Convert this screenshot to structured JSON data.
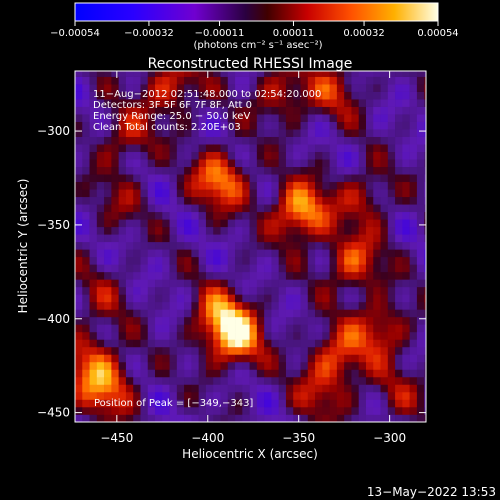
{
  "chart_data": {
    "type": "heatmap",
    "title": "Reconstructed RHESSI Image",
    "xlabel": "Heliocentric X (arcsec)",
    "ylabel": "Heliocentric Y (arcsec)",
    "xlim": [
      -473,
      -280
    ],
    "ylim": [
      -455,
      -268
    ],
    "x_ticks": [
      -450,
      -400,
      -350,
      -300
    ],
    "y_ticks": [
      -300,
      -350,
      -400,
      -450
    ],
    "x_tick_labels": [
      "−450",
      "−400",
      "−350",
      "−300"
    ],
    "y_tick_labels": [
      "−300",
      "−350",
      "−400",
      "−450"
    ],
    "colorbar": {
      "ticks": [
        -0.00054,
        -0.00032,
        -0.00011,
        0.00011,
        0.00032,
        0.00054
      ],
      "tick_labels": [
        "−0.00054",
        "−0.00032",
        "−0.00011",
        "0.00011",
        "0.00032",
        "0.00054"
      ],
      "unit_label": "(photons cm⁻² s⁻¹ asec⁻²)",
      "range": [
        -0.00054,
        0.00054
      ]
    },
    "annotations": [
      "11−Aug−2012 02:51:48.000 to 02:54:20.000",
      "Detectors: 3F 5F 6F 7F 8F, Att 0",
      "Energy Range: 25.0 − 50.0 keV",
      "Clean    Total counts: 2.20E+03"
    ],
    "peak_label": "Position of Peak = [−349,−343]",
    "peak": [
      -349,
      -343
    ],
    "hotspots": [
      {
        "x": -349,
        "y": -343,
        "v": 0.00054
      },
      {
        "x": -393,
        "y": -326,
        "v": 0.00045
      },
      {
        "x": -385,
        "y": -410,
        "v": 0.0005
      },
      {
        "x": -393,
        "y": -398,
        "v": 0.00036
      },
      {
        "x": -456,
        "y": -436,
        "v": 0.00042
      },
      {
        "x": -466,
        "y": -420,
        "v": 0.00028
      },
      {
        "x": -420,
        "y": -276,
        "v": 0.00034
      },
      {
        "x": -445,
        "y": -303,
        "v": 0.00026
      },
      {
        "x": -360,
        "y": -280,
        "v": 0.00028
      },
      {
        "x": -330,
        "y": -278,
        "v": 0.00026
      },
      {
        "x": -320,
        "y": -370,
        "v": 0.00037
      },
      {
        "x": -313,
        "y": -335,
        "v": 0.00025
      },
      {
        "x": -305,
        "y": -405,
        "v": 0.00033
      },
      {
        "x": -329,
        "y": -420,
        "v": 0.00035
      },
      {
        "x": -338,
        "y": -440,
        "v": 0.00022
      },
      {
        "x": -458,
        "y": -388,
        "v": 0.00016
      },
      {
        "x": -450,
        "y": -338,
        "v": 0.00015
      },
      {
        "x": -296,
        "y": -440,
        "v": 0.00018
      }
    ]
  },
  "timestamp": "13−May−2022 13:53"
}
